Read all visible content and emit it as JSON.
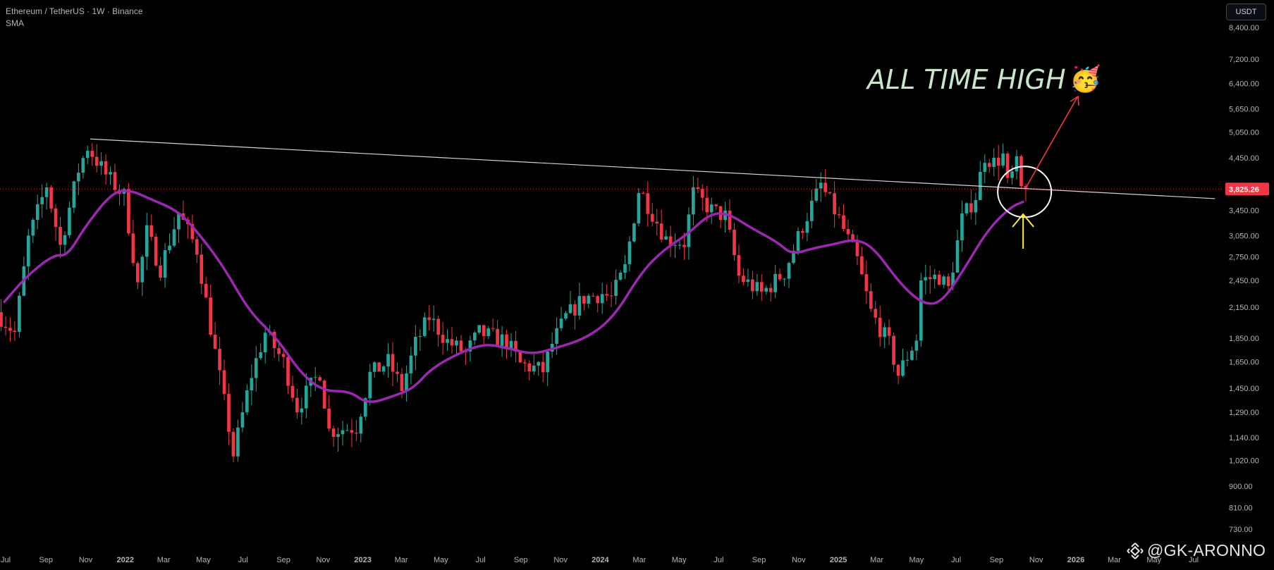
{
  "header": {
    "symbol_line": "Ethereum / TetherUS · 1W · Binance",
    "indicator": "SMA"
  },
  "currency_button": "USDT",
  "watermark": {
    "handle": "@GK-ARONNO",
    "logo_icon": "binance-logo-icon"
  },
  "annotation": {
    "text": "ALL TIME HIGH",
    "emoji": "🥳"
  },
  "colors": {
    "background": "#000000",
    "up": "#26a69a",
    "down": "#f23645",
    "sma": "#9c27b0",
    "trendline": "#d1d4dc",
    "price_label": "#f23645",
    "arrow_up": "#ffeb3b",
    "arrow_target": "#f23645",
    "axis_text": "#b2b5be",
    "annotation_text": "#c8e6c9"
  },
  "chart_data": {
    "type": "candlestick",
    "title": "Ethereum / TetherUS · 1W · Binance",
    "y_scale": "log",
    "ylim": [
      680,
      8800
    ],
    "y_ticks": [
      8400,
      7200,
      6400,
      5650,
      5050,
      4450,
      3450,
      3050,
      2750,
      2450,
      2150,
      1850,
      1650,
      1450,
      1290,
      1140,
      1020,
      900,
      810,
      730
    ],
    "y_tick_labels": [
      "8,400.00",
      "7,200.00",
      "6,400.00",
      "5,650.00",
      "5,050.00",
      "4,450.00",
      "3,450.00",
      "3,050.00",
      "2,750.00",
      "2,450.00",
      "2,150.00",
      "1,850.00",
      "1,650.00",
      "1,450.00",
      "1,290.00",
      "1,140.00",
      "1,020.00",
      "900.00",
      "810.00",
      "730.00"
    ],
    "x_ticks": [
      {
        "label": "Jul",
        "date": "2021-07-01",
        "bold": false
      },
      {
        "label": "Sep",
        "date": "2021-09-01",
        "bold": false
      },
      {
        "label": "Nov",
        "date": "2021-11-01",
        "bold": false
      },
      {
        "label": "2022",
        "date": "2022-01-01",
        "bold": true
      },
      {
        "label": "Mar",
        "date": "2022-03-01",
        "bold": false
      },
      {
        "label": "May",
        "date": "2022-05-01",
        "bold": false
      },
      {
        "label": "Jul",
        "date": "2022-07-01",
        "bold": false
      },
      {
        "label": "Sep",
        "date": "2022-09-01",
        "bold": false
      },
      {
        "label": "Nov",
        "date": "2022-11-01",
        "bold": false
      },
      {
        "label": "2023",
        "date": "2023-01-01",
        "bold": true
      },
      {
        "label": "Mar",
        "date": "2023-03-01",
        "bold": false
      },
      {
        "label": "May",
        "date": "2023-05-01",
        "bold": false
      },
      {
        "label": "Jul",
        "date": "2023-07-01",
        "bold": false
      },
      {
        "label": "Sep",
        "date": "2023-09-01",
        "bold": false
      },
      {
        "label": "Nov",
        "date": "2023-11-01",
        "bold": false
      },
      {
        "label": "2024",
        "date": "2024-01-01",
        "bold": true
      },
      {
        "label": "Mar",
        "date": "2024-03-01",
        "bold": false
      },
      {
        "label": "May",
        "date": "2024-05-01",
        "bold": false
      },
      {
        "label": "Jul",
        "date": "2024-07-01",
        "bold": false
      },
      {
        "label": "Sep",
        "date": "2024-09-01",
        "bold": false
      },
      {
        "label": "Nov",
        "date": "2024-11-01",
        "bold": false
      },
      {
        "label": "2025",
        "date": "2025-01-01",
        "bold": true
      },
      {
        "label": "Mar",
        "date": "2025-03-01",
        "bold": false
      },
      {
        "label": "May",
        "date": "2025-05-01",
        "bold": false
      },
      {
        "label": "Jul",
        "date": "2025-07-01",
        "bold": false
      },
      {
        "label": "Sep",
        "date": "2025-09-01",
        "bold": false
      },
      {
        "label": "Nov",
        "date": "2025-11-01",
        "bold": false
      },
      {
        "label": "2026",
        "date": "2026-01-01",
        "bold": true
      },
      {
        "label": "Mar",
        "date": "2026-03-01",
        "bold": false
      },
      {
        "label": "May",
        "date": "2026-05-01",
        "bold": false
      },
      {
        "label": "Jul",
        "date": "2026-07-01",
        "bold": false
      }
    ],
    "current_price": 3825.26,
    "current_price_label": "3,825.26",
    "price_path": [
      [
        "2021-06-21",
        2100
      ],
      [
        "2021-07-19",
        1900
      ],
      [
        "2021-08-09",
        3000
      ],
      [
        "2021-09-06",
        3900
      ],
      [
        "2021-09-27",
        2900
      ],
      [
        "2021-10-25",
        4200
      ],
      [
        "2021-11-08",
        4700
      ],
      [
        "2021-12-06",
        4100
      ],
      [
        "2022-01-03",
        3700
      ],
      [
        "2022-01-24",
        2400
      ],
      [
        "2022-02-07",
        3100
      ],
      [
        "2022-02-28",
        2600
      ],
      [
        "2022-03-28",
        3400
      ],
      [
        "2022-04-25",
        2850
      ],
      [
        "2022-05-16",
        1950
      ],
      [
        "2022-06-13",
        1200
      ],
      [
        "2022-06-20",
        1050
      ],
      [
        "2022-07-18",
        1550
      ],
      [
        "2022-08-08",
        1900
      ],
      [
        "2022-09-05",
        1650
      ],
      [
        "2022-09-26",
        1320
      ],
      [
        "2022-10-31",
        1570
      ],
      [
        "2022-11-14",
        1180
      ],
      [
        "2022-12-26",
        1200
      ],
      [
        "2023-01-16",
        1550
      ],
      [
        "2023-02-13",
        1650
      ],
      [
        "2023-03-06",
        1450
      ],
      [
        "2023-03-27",
        1800
      ],
      [
        "2023-04-17",
        2050
      ],
      [
        "2023-05-15",
        1820
      ],
      [
        "2023-06-12",
        1720
      ],
      [
        "2023-07-03",
        1900
      ],
      [
        "2023-08-14",
        1820
      ],
      [
        "2023-09-04",
        1630
      ],
      [
        "2023-10-09",
        1580
      ],
      [
        "2023-10-23",
        1800
      ],
      [
        "2023-11-13",
        2050
      ],
      [
        "2023-12-11",
        2250
      ],
      [
        "2024-01-08",
        2300
      ],
      [
        "2024-01-22",
        2250
      ],
      [
        "2024-02-12",
        2600
      ],
      [
        "2024-03-04",
        3800
      ],
      [
        "2024-03-11",
        3700
      ],
      [
        "2024-04-15",
        3000
      ],
      [
        "2024-05-13",
        2950
      ],
      [
        "2024-05-27",
        3750
      ],
      [
        "2024-06-24",
        3450
      ],
      [
        "2024-07-15",
        3350
      ],
      [
        "2024-08-05",
        2500
      ],
      [
        "2024-09-09",
        2300
      ],
      [
        "2024-10-14",
        2550
      ],
      [
        "2024-11-11",
        3200
      ],
      [
        "2024-12-09",
        3900
      ],
      [
        "2025-01-06",
        3300
      ],
      [
        "2025-02-03",
        2700
      ],
      [
        "2025-02-24",
        2100
      ],
      [
        "2025-03-24",
        1800
      ],
      [
        "2025-04-07",
        1550
      ],
      [
        "2025-05-05",
        1850
      ],
      [
        "2025-05-12",
        2450
      ],
      [
        "2025-06-09",
        2500
      ],
      [
        "2025-06-23",
        2350
      ],
      [
        "2025-07-14",
        3300
      ],
      [
        "2025-08-04",
        3700
      ],
      [
        "2025-08-18",
        4500
      ],
      [
        "2025-09-01",
        4350
      ],
      [
        "2025-09-15",
        4500
      ],
      [
        "2025-09-22",
        3900
      ],
      [
        "2025-10-06",
        4300
      ],
      [
        "2025-10-13",
        3825
      ]
    ],
    "sma_series": {
      "name": "SMA",
      "points": [
        [
          "2021-06-28",
          2200
        ],
        [
          "2021-08-02",
          2500
        ],
        [
          "2021-09-13",
          2780
        ],
        [
          "2021-10-04",
          2760
        ],
        [
          "2021-11-01",
          3200
        ],
        [
          "2021-12-13",
          3780
        ],
        [
          "2022-01-10",
          3800
        ],
        [
          "2022-02-07",
          3650
        ],
        [
          "2022-03-21",
          3450
        ],
        [
          "2022-04-18",
          3150
        ],
        [
          "2022-05-30",
          2650
        ],
        [
          "2022-07-11",
          2100
        ],
        [
          "2022-08-22",
          1850
        ],
        [
          "2022-09-26",
          1570
        ],
        [
          "2022-10-31",
          1430
        ],
        [
          "2022-12-12",
          1430
        ],
        [
          "2023-01-09",
          1340
        ],
        [
          "2023-02-20",
          1400
        ],
        [
          "2023-03-20",
          1450
        ],
        [
          "2023-04-17",
          1600
        ],
        [
          "2023-06-05",
          1740
        ],
        [
          "2023-07-10",
          1800
        ],
        [
          "2023-08-14",
          1760
        ],
        [
          "2023-09-18",
          1710
        ],
        [
          "2023-10-23",
          1760
        ],
        [
          "2023-12-11",
          1850
        ],
        [
          "2024-01-22",
          2050
        ],
        [
          "2024-03-04",
          2550
        ],
        [
          "2024-04-08",
          2850
        ],
        [
          "2024-05-13",
          3060
        ],
        [
          "2024-06-17",
          3390
        ],
        [
          "2024-07-15",
          3400
        ],
        [
          "2024-08-19",
          3170
        ],
        [
          "2024-09-30",
          2950
        ],
        [
          "2024-10-21",
          2780
        ],
        [
          "2024-11-25",
          2870
        ],
        [
          "2024-12-23",
          2920
        ],
        [
          "2025-01-27",
          3000
        ],
        [
          "2025-02-24",
          2880
        ],
        [
          "2025-04-07",
          2400
        ],
        [
          "2025-05-12",
          2180
        ],
        [
          "2025-06-09",
          2200
        ],
        [
          "2025-07-14",
          2600
        ],
        [
          "2025-08-18",
          3130
        ],
        [
          "2025-09-22",
          3500
        ],
        [
          "2025-10-13",
          3600
        ]
      ]
    },
    "trendline": {
      "start": [
        "2021-11-08",
        4880
      ],
      "end": [
        "2026-08-03",
        3650
      ]
    },
    "resistance_marker": {
      "date": "2025-10-13",
      "price": 3825.26
    }
  }
}
